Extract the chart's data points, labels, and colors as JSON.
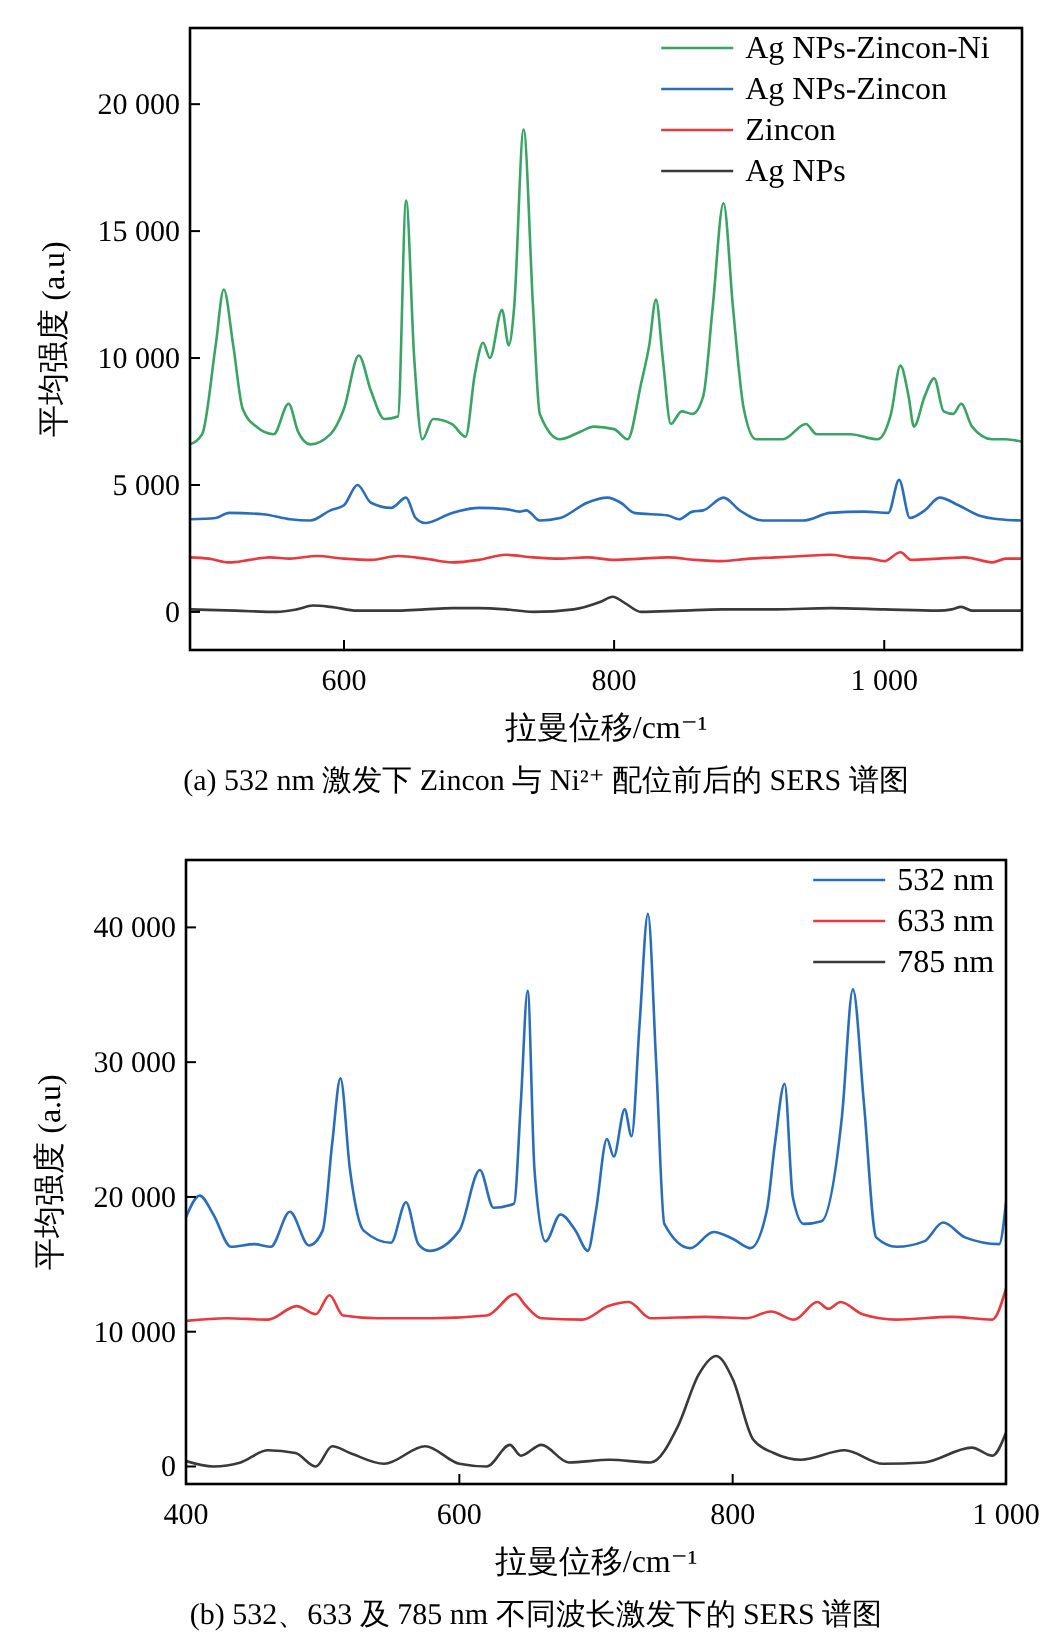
{
  "chart_data": [
    {
      "type": "line",
      "title": "(a) 532 nm 激发下 Zincon 与 Ni²⁺ 配位前后的 SERS 谱图",
      "xlabel": "拉曼位移/cm⁻¹",
      "ylabel": "平均强度 (a.u)",
      "xlim": [
        486,
        1102
      ],
      "ylim": [
        -1500,
        23000
      ],
      "xticks": [
        600,
        800,
        {
          "value": 1000,
          "label": "1 000"
        }
      ],
      "yticks": [
        0,
        {
          "value": 5000,
          "label": "5 000"
        },
        {
          "value": 10000,
          "label": "10 000"
        },
        {
          "value": 15000,
          "label": "15 000"
        },
        {
          "value": 20000,
          "label": "20 000"
        }
      ],
      "grid": false,
      "legend": "top right",
      "marker": "none",
      "line_style": "solid",
      "series": [
        {
          "name": "Ag NPs-Zincon-Ni",
          "color": "#3aa466",
          "x": [
            486,
            495,
            505,
            511,
            518,
            525,
            535,
            548,
            559,
            566,
            575,
            590,
            600,
            611,
            620,
            630,
            640,
            646,
            652,
            658,
            666,
            680,
            690,
            697,
            703,
            708,
            717,
            722,
            726,
            733,
            740,
            745,
            760,
            775,
            785,
            800,
            810,
            820,
            826,
            831,
            836,
            842,
            850,
            858,
            866,
            873,
            881,
            888,
            896,
            905,
            925,
            942,
            950,
            975,
            995,
            1005,
            1012,
            1018,
            1022,
            1030,
            1037,
            1044,
            1051,
            1057,
            1065,
            1080,
            1090,
            1102
          ],
          "values": [
            6600,
            7000,
            10500,
            12700,
            10500,
            8000,
            7300,
            7000,
            8200,
            7100,
            6600,
            7000,
            8000,
            10100,
            8700,
            7600,
            7700,
            16200,
            10000,
            6800,
            7600,
            7400,
            6900,
            9400,
            10600,
            10000,
            11900,
            10500,
            12000,
            19000,
            12000,
            7800,
            6800,
            7100,
            7300,
            7200,
            6800,
            9000,
            10500,
            12300,
            10000,
            7400,
            7900,
            7800,
            8500,
            12000,
            16100,
            12000,
            8000,
            6800,
            6800,
            7400,
            7000,
            7000,
            6800,
            7800,
            9700,
            8500,
            7300,
            8500,
            9200,
            7900,
            7800,
            8200,
            7300,
            6800,
            6800,
            6700
          ]
        },
        {
          "name": "Ag NPs-Zincon",
          "color": "#2a6ebb",
          "x": [
            486,
            505,
            515,
            540,
            560,
            575,
            590,
            600,
            610,
            620,
            635,
            646,
            653,
            660,
            680,
            700,
            720,
            730,
            735,
            745,
            760,
            780,
            795,
            805,
            815,
            840,
            848,
            858,
            866,
            881,
            893,
            910,
            940,
            960,
            985,
            1003,
            1011,
            1019,
            1030,
            1041,
            1055,
            1070,
            1085,
            1102
          ],
          "values": [
            3650,
            3700,
            3900,
            3850,
            3650,
            3600,
            4000,
            4200,
            5000,
            4300,
            4100,
            4500,
            3700,
            3500,
            3900,
            4100,
            4050,
            3950,
            4000,
            3600,
            3700,
            4300,
            4500,
            4300,
            3900,
            3800,
            3650,
            3950,
            4000,
            4500,
            4000,
            3600,
            3600,
            3900,
            3950,
            3900,
            5200,
            3700,
            4000,
            4500,
            4200,
            3800,
            3650,
            3600
          ]
        },
        {
          "name": "Zincon",
          "color": "#e8393f",
          "x": [
            486,
            500,
            515,
            530,
            545,
            560,
            580,
            600,
            620,
            640,
            660,
            680,
            700,
            720,
            740,
            760,
            780,
            800,
            820,
            840,
            860,
            880,
            900,
            920,
            940,
            960,
            975,
            990,
            1000,
            1012,
            1020,
            1040,
            1060,
            1080,
            1090,
            1102
          ],
          "values": [
            2150,
            2100,
            1950,
            2050,
            2150,
            2100,
            2200,
            2100,
            2050,
            2200,
            2100,
            1950,
            2050,
            2250,
            2150,
            2100,
            2150,
            2050,
            2100,
            2150,
            2050,
            2000,
            2100,
            2150,
            2200,
            2250,
            2150,
            2100,
            2000,
            2350,
            2050,
            2100,
            2150,
            1950,
            2100,
            2100
          ]
        },
        {
          "name": "Ag NPs",
          "color": "#3a3a3a",
          "x": [
            486,
            520,
            550,
            565,
            577,
            590,
            610,
            640,
            660,
            680,
            700,
            720,
            740,
            770,
            790,
            799,
            808,
            820,
            850,
            880,
            920,
            960,
            1000,
            1040,
            1050,
            1057,
            1065,
            1102
          ],
          "values": [
            100,
            50,
            0,
            100,
            250,
            200,
            50,
            50,
            100,
            150,
            150,
            100,
            0,
            100,
            400,
            600,
            350,
            0,
            50,
            100,
            100,
            150,
            100,
            50,
            100,
            200,
            50,
            50
          ]
        }
      ]
    },
    {
      "type": "line",
      "title": "(b) 532、633 及 785 nm 不同波长激发下的 SERS 谱图",
      "xlabel": "拉曼位移/cm⁻¹",
      "ylabel": "平均强度 (a.u)",
      "xlim": [
        400,
        1000
      ],
      "ylim": [
        -1300,
        45000
      ],
      "xticks": [
        400,
        600,
        800,
        {
          "value": 1000,
          "label": "1 000"
        }
      ],
      "yticks": [
        0,
        {
          "value": 10000,
          "label": "10 000"
        },
        {
          "value": 20000,
          "label": "20 000"
        },
        {
          "value": 30000,
          "label": "30 000"
        },
        {
          "value": 40000,
          "label": "40 000"
        }
      ],
      "grid": false,
      "legend": "top right",
      "marker": "none",
      "line_style": "solid",
      "series": [
        {
          "name": "532 nm",
          "color": "#2a6ebb",
          "x": [
            400,
            410,
            420,
            433,
            450,
            462,
            476,
            490,
            500,
            507,
            513,
            520,
            530,
            550,
            561,
            570,
            578,
            600,
            615,
            625,
            640,
            645,
            650,
            655,
            663,
            674,
            685,
            694,
            700,
            708,
            713,
            721,
            726,
            732,
            738,
            744,
            750,
            769,
            786,
            800,
            813,
            825,
            831,
            838,
            844,
            852,
            865,
            880,
            888,
            896,
            905,
            920,
            940,
            954,
            970,
            995,
            1000
          ],
          "values": [
            18500,
            20100,
            18700,
            16300,
            16500,
            16300,
            18900,
            16400,
            17500,
            24000,
            28800,
            22000,
            17500,
            16600,
            19600,
            16500,
            16000,
            17500,
            22000,
            19200,
            19500,
            27000,
            35300,
            22000,
            16700,
            18700,
            17500,
            16000,
            19000,
            24300,
            23000,
            26500,
            24500,
            33000,
            41000,
            30000,
            18000,
            16200,
            17400,
            16900,
            16200,
            19000,
            24000,
            28400,
            20000,
            18000,
            18200,
            26000,
            35400,
            27000,
            17000,
            16300,
            16700,
            18100,
            17000,
            16500,
            19600
          ]
        },
        {
          "name": "633 nm",
          "color": "#e8393f",
          "x": [
            400,
            430,
            460,
            481,
            495,
            505,
            515,
            540,
            580,
            620,
            641,
            648,
            660,
            690,
            709,
            724,
            740,
            780,
            810,
            828,
            845,
            862,
            870,
            879,
            895,
            920,
            960,
            990,
            1000
          ],
          "values": [
            10800,
            11000,
            10900,
            11900,
            11300,
            12700,
            11200,
            11000,
            11000,
            11200,
            12800,
            12000,
            11000,
            10900,
            11900,
            12200,
            11000,
            11100,
            11000,
            11500,
            10900,
            12200,
            11700,
            12200,
            11300,
            10900,
            11100,
            10900,
            13200
          ]
        },
        {
          "name": "785 nm",
          "color": "#3a3a3a",
          "x": [
            400,
            420,
            440,
            460,
            480,
            495,
            507,
            520,
            545,
            575,
            600,
            620,
            637,
            645,
            660,
            680,
            710,
            740,
            760,
            775,
            788,
            800,
            815,
            830,
            850,
            882,
            910,
            940,
            975,
            990,
            1000
          ],
          "values": [
            400,
            0,
            300,
            1200,
            1000,
            0,
            1500,
            1000,
            200,
            1500,
            200,
            0,
            1600,
            800,
            1600,
            300,
            500,
            300,
            3000,
            6800,
            8200,
            6500,
            2000,
            1000,
            500,
            1200,
            200,
            300,
            1400,
            800,
            2500
          ]
        }
      ]
    }
  ]
}
